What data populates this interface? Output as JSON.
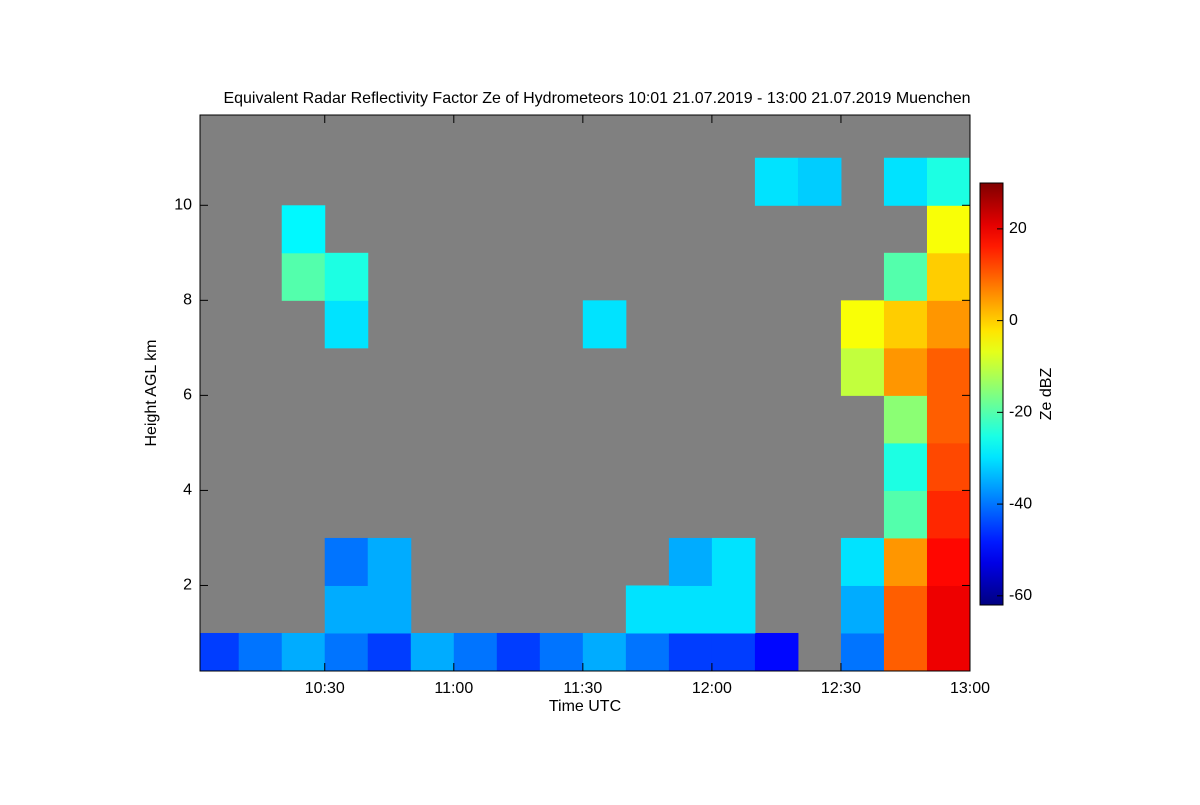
{
  "chart_data": {
    "type": "heatmap",
    "title": "Equivalent Radar Reflectivity Factor Ze of Hydrometeors   10:01 21.07.2019 - 13:00 21.07.2019 Muenchen",
    "x_label": "Time UTC",
    "y_label": "Height AGL km",
    "colorbar_label": "Ze dBZ",
    "colormap": "jet",
    "background": "#808080",
    "x": [
      10.0833,
      10.25,
      10.4167,
      10.5833,
      10.75,
      10.9167,
      11.0833,
      11.25,
      11.4167,
      11.5833,
      11.75,
      11.9167,
      12.0833,
      12.25,
      12.4167,
      12.5833,
      12.75,
      12.9167
    ],
    "y": [
      0.5,
      1.5,
      2.5,
      3.5,
      4.5,
      5.5,
      6.5,
      7.5,
      8.5,
      9.5,
      10.5,
      11.5
    ],
    "z": [
      [
        -45,
        -40,
        -35,
        -40,
        -45,
        -35,
        -40,
        -45,
        -40,
        -35,
        -40,
        -45,
        -45,
        -50,
        null,
        -40,
        10,
        20
      ],
      [
        null,
        null,
        null,
        -35,
        -35,
        null,
        null,
        null,
        null,
        null,
        -30,
        -30,
        -30,
        null,
        null,
        -35,
        10,
        20
      ],
      [
        null,
        null,
        null,
        -40,
        -35,
        null,
        null,
        null,
        null,
        null,
        null,
        -35,
        -30,
        null,
        null,
        -30,
        5,
        18
      ],
      [
        null,
        null,
        null,
        null,
        null,
        null,
        null,
        null,
        null,
        null,
        null,
        null,
        null,
        null,
        null,
        null,
        -20,
        15
      ],
      [
        null,
        null,
        null,
        null,
        null,
        null,
        null,
        null,
        null,
        null,
        null,
        null,
        null,
        null,
        null,
        null,
        -25,
        12
      ],
      [
        null,
        null,
        null,
        null,
        null,
        null,
        null,
        null,
        null,
        null,
        null,
        null,
        null,
        null,
        null,
        null,
        -15,
        10
      ],
      [
        null,
        null,
        null,
        null,
        null,
        null,
        null,
        null,
        null,
        null,
        null,
        null,
        null,
        null,
        null,
        -10,
        5,
        10
      ],
      [
        null,
        null,
        null,
        -30,
        null,
        null,
        null,
        null,
        null,
        -30,
        null,
        null,
        null,
        null,
        null,
        -5,
        0,
        5
      ],
      [
        null,
        null,
        -20,
        -25,
        null,
        null,
        null,
        null,
        null,
        null,
        null,
        null,
        null,
        null,
        null,
        null,
        -20,
        0
      ],
      [
        null,
        null,
        -28,
        null,
        null,
        null,
        null,
        null,
        null,
        null,
        null,
        null,
        null,
        null,
        null,
        null,
        null,
        -5
      ],
      [
        null,
        null,
        null,
        null,
        null,
        null,
        null,
        null,
        null,
        null,
        null,
        null,
        null,
        -30,
        -32,
        null,
        -30,
        -25
      ],
      [
        null,
        null,
        null,
        null,
        null,
        null,
        null,
        null,
        null,
        null,
        null,
        null,
        null,
        null,
        null,
        null,
        null,
        null
      ]
    ],
    "xlim": [
      10.0167,
      13.0
    ],
    "ylim": [
      0.2,
      11.9
    ],
    "xticks": [
      {
        "value": 10.5,
        "label": "10:30"
      },
      {
        "value": 11,
        "label": "11:00"
      },
      {
        "value": 11.5,
        "label": "11:30"
      },
      {
        "value": 12,
        "label": "12:00"
      },
      {
        "value": 12.5,
        "label": "12:30"
      },
      {
        "value": 13,
        "label": "13:00"
      }
    ],
    "yticks": [
      2,
      4,
      6,
      8,
      10
    ],
    "clim": [
      -62,
      30
    ],
    "cticks": [
      -60,
      -40,
      -20,
      0,
      20
    ]
  }
}
